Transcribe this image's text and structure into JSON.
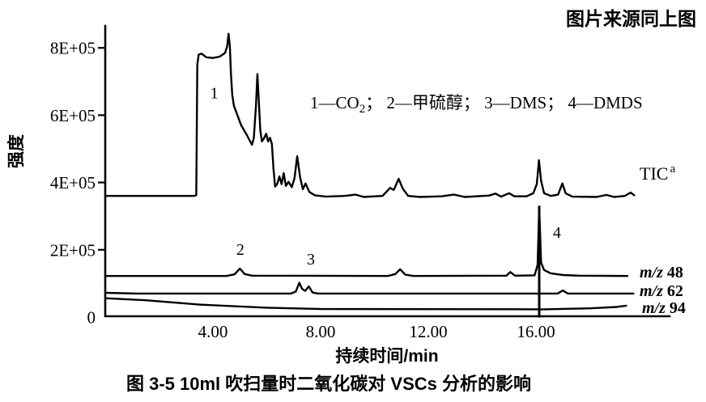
{
  "header": {
    "source_note": "图片来源同上图"
  },
  "caption": "图 3-5  10ml 吹扫量时二氧化碳对 VSCs 分析的影响",
  "legend": {
    "p1": "1—CO",
    "sub": "2",
    "rest": "； 2—甲硫醇； 3—DMS； 4—DMDS"
  },
  "traces": {
    "tic": {
      "label": "TIC",
      "label_sup": "a"
    },
    "mz48": {
      "label_italic": "m/z",
      "label_num": "48"
    },
    "mz62": {
      "label_italic": "m/z",
      "label_num": "62"
    },
    "mz94": {
      "label_italic": "m/z",
      "label_num": "94"
    }
  },
  "chart_data": {
    "type": "line",
    "title": "图 3-5  10ml 吹扫量时二氧化碳对 VSCs 分析的影响",
    "xlabel": "持续时间/min",
    "ylabel": "强度",
    "x_unit": "min",
    "y_unit": "counts",
    "xlim": [
      0,
      21
    ],
    "ylim": [
      0,
      880000
    ],
    "grid": false,
    "line_color": "#000000",
    "x_ticks": [
      {
        "t": 4,
        "label": "4.00"
      },
      {
        "t": 8,
        "label": "8.00"
      },
      {
        "t": 12,
        "label": "12.00"
      },
      {
        "t": 16,
        "label": "16.00"
      }
    ],
    "y_ticks": [
      {
        "v": 8,
        "label": "8E+05"
      },
      {
        "v": 6,
        "label": "6E+05"
      },
      {
        "v": 4,
        "label": "4E+05"
      },
      {
        "v": 2,
        "label": "2E+05"
      },
      {
        "v": 0,
        "label": "0"
      }
    ],
    "value_scale_note": "series values are intensity in units of 1E+05",
    "annotations": [
      {
        "label": "1",
        "t": 4.05,
        "v": 6.5
      },
      {
        "label": "2",
        "t": 5.02,
        "v": 1.85
      },
      {
        "label": "3",
        "t": 7.64,
        "v": 1.56
      },
      {
        "label": "4",
        "t": 16.78,
        "v": 2.36
      }
    ],
    "series": [
      {
        "name": "TIC",
        "points": [
          [
            0,
            3.6
          ],
          [
            3.3,
            3.6
          ],
          [
            3.38,
            3.62
          ],
          [
            3.42,
            7.5
          ],
          [
            3.47,
            7.8
          ],
          [
            3.58,
            7.83
          ],
          [
            3.75,
            7.72
          ],
          [
            4.0,
            7.7
          ],
          [
            4.25,
            7.74
          ],
          [
            4.45,
            7.85
          ],
          [
            4.53,
            8.05
          ],
          [
            4.58,
            8.42
          ],
          [
            4.63,
            8.05
          ],
          [
            4.67,
            7.2
          ],
          [
            4.72,
            6.6
          ],
          [
            4.78,
            6.28
          ],
          [
            5.05,
            5.7
          ],
          [
            5.25,
            5.42
          ],
          [
            5.45,
            5.12
          ],
          [
            5.52,
            5.32
          ],
          [
            5.6,
            6.3
          ],
          [
            5.65,
            7.22
          ],
          [
            5.7,
            6.5
          ],
          [
            5.76,
            5.55
          ],
          [
            5.82,
            5.22
          ],
          [
            5.9,
            5.32
          ],
          [
            5.98,
            5.45
          ],
          [
            6.05,
            5.22
          ],
          [
            6.12,
            5.33
          ],
          [
            6.19,
            5.15
          ],
          [
            6.25,
            4.4
          ],
          [
            6.31,
            3.88
          ],
          [
            6.39,
            3.96
          ],
          [
            6.47,
            4.18
          ],
          [
            6.55,
            3.95
          ],
          [
            6.63,
            4.28
          ],
          [
            6.71,
            3.9
          ],
          [
            6.81,
            4.02
          ],
          [
            6.93,
            3.86
          ],
          [
            7.03,
            4.12
          ],
          [
            7.13,
            4.78
          ],
          [
            7.24,
            4.15
          ],
          [
            7.34,
            3.8
          ],
          [
            7.44,
            3.97
          ],
          [
            7.58,
            3.72
          ],
          [
            7.78,
            3.62
          ],
          [
            8.2,
            3.58
          ],
          [
            8.9,
            3.6
          ],
          [
            9.3,
            3.64
          ],
          [
            9.6,
            3.57
          ],
          [
            10.3,
            3.6
          ],
          [
            10.58,
            3.84
          ],
          [
            10.72,
            3.78
          ],
          [
            10.9,
            4.11
          ],
          [
            11.05,
            3.82
          ],
          [
            11.25,
            3.6
          ],
          [
            11.7,
            3.57
          ],
          [
            12.5,
            3.59
          ],
          [
            12.95,
            3.64
          ],
          [
            13.35,
            3.57
          ],
          [
            14.25,
            3.61
          ],
          [
            14.5,
            3.67
          ],
          [
            14.7,
            3.58
          ],
          [
            15.0,
            3.68
          ],
          [
            15.2,
            3.59
          ],
          [
            15.65,
            3.59
          ],
          [
            15.9,
            3.68
          ],
          [
            16.03,
            3.95
          ],
          [
            16.11,
            4.66
          ],
          [
            16.19,
            4.05
          ],
          [
            16.3,
            3.68
          ],
          [
            16.55,
            3.6
          ],
          [
            16.82,
            3.64
          ],
          [
            16.98,
            3.97
          ],
          [
            17.1,
            3.68
          ],
          [
            17.35,
            3.58
          ],
          [
            18.25,
            3.57
          ],
          [
            18.62,
            3.63
          ],
          [
            18.9,
            3.57
          ],
          [
            19.3,
            3.6
          ],
          [
            19.52,
            3.7
          ],
          [
            19.65,
            3.62
          ]
        ]
      },
      {
        "name": "m/z 48",
        "points": [
          [
            0,
            1.22
          ],
          [
            4.5,
            1.22
          ],
          [
            4.8,
            1.27
          ],
          [
            5.0,
            1.44
          ],
          [
            5.18,
            1.28
          ],
          [
            5.45,
            1.23
          ],
          [
            10.5,
            1.22
          ],
          [
            10.78,
            1.28
          ],
          [
            10.95,
            1.42
          ],
          [
            11.15,
            1.26
          ],
          [
            11.45,
            1.22
          ],
          [
            14.9,
            1.23
          ],
          [
            15.05,
            1.34
          ],
          [
            15.22,
            1.23
          ],
          [
            15.95,
            1.24
          ],
          [
            16.06,
            1.55
          ],
          [
            16.12,
            3.28
          ],
          [
            16.19,
            1.62
          ],
          [
            16.3,
            1.4
          ],
          [
            16.55,
            1.3
          ],
          [
            17.0,
            1.25
          ],
          [
            17.6,
            1.23
          ],
          [
            19.4,
            1.22
          ]
        ]
      },
      {
        "name": "peak4-spike",
        "points": [
          [
            16.12,
            0.02
          ],
          [
            16.12,
            3.28
          ]
        ]
      },
      {
        "name": "m/z 62",
        "points": [
          [
            0,
            0.72
          ],
          [
            1.2,
            0.7
          ],
          [
            6.9,
            0.7
          ],
          [
            7.08,
            0.76
          ],
          [
            7.21,
            1.02
          ],
          [
            7.31,
            0.84
          ],
          [
            7.43,
            0.78
          ],
          [
            7.56,
            0.91
          ],
          [
            7.7,
            0.73
          ],
          [
            7.9,
            0.7
          ],
          [
            16.8,
            0.7
          ],
          [
            17.0,
            0.79
          ],
          [
            17.18,
            0.7
          ],
          [
            19.62,
            0.7
          ]
        ]
      },
      {
        "name": "m/z 94",
        "points": [
          [
            0,
            0.56
          ],
          [
            1.5,
            0.5
          ],
          [
            3.5,
            0.37
          ],
          [
            6.0,
            0.28
          ],
          [
            8.0,
            0.24
          ],
          [
            16.0,
            0.23
          ],
          [
            16.3,
            0.23
          ],
          [
            18.0,
            0.26
          ],
          [
            19.0,
            0.3
          ],
          [
            19.35,
            0.34
          ]
        ]
      }
    ]
  }
}
